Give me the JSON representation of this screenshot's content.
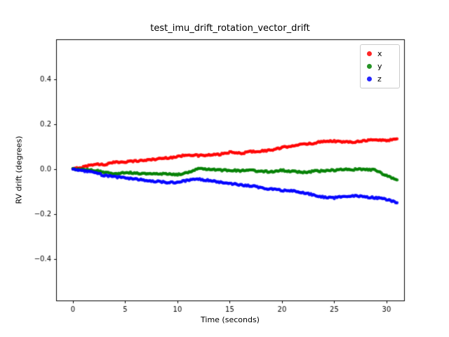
{
  "chart_data": {
    "type": "scatter",
    "title": "test_imu_drift_rotation_vector_drift",
    "xlabel": "Time (seconds)",
    "ylabel": "RV drift (degrees)",
    "xlim": [
      -1.61,
      31.68
    ],
    "ylim": [
      -0.585,
      0.578
    ],
    "xticks": [
      0,
      5,
      10,
      15,
      20,
      25,
      30
    ],
    "yticks": [
      -0.4,
      -0.2,
      0.0,
      0.2,
      0.4
    ],
    "grid": false,
    "legend_position": "upper right",
    "x": [
      0,
      1,
      2,
      3,
      4,
      5,
      6,
      7,
      8,
      9,
      10,
      11,
      12,
      13,
      14,
      15,
      16,
      17,
      18,
      19,
      20,
      21,
      22,
      23,
      24,
      25,
      26,
      27,
      28,
      29,
      30,
      31
    ],
    "series": [
      {
        "name": "x",
        "color": "#ff0000",
        "values": [
          0.0,
          0.01,
          0.022,
          0.02,
          0.03,
          0.033,
          0.036,
          0.04,
          0.045,
          0.05,
          0.055,
          0.065,
          0.06,
          0.062,
          0.065,
          0.075,
          0.07,
          0.078,
          0.08,
          0.085,
          0.095,
          0.105,
          0.11,
          0.115,
          0.125,
          0.125,
          0.12,
          0.122,
          0.128,
          0.13,
          0.128,
          0.135
        ]
      },
      {
        "name": "y",
        "color": "#008000",
        "values": [
          0.0,
          -0.003,
          -0.005,
          -0.015,
          -0.02,
          -0.015,
          -0.018,
          -0.02,
          -0.022,
          -0.02,
          -0.025,
          -0.015,
          0.005,
          0.0,
          -0.005,
          -0.005,
          -0.008,
          -0.005,
          -0.01,
          -0.012,
          -0.005,
          -0.01,
          -0.015,
          -0.01,
          -0.008,
          -0.005,
          0.0,
          -0.002,
          0.0,
          -0.005,
          -0.03,
          -0.048
        ]
      },
      {
        "name": "z",
        "color": "#0000ff",
        "values": [
          0.0,
          -0.008,
          -0.015,
          -0.028,
          -0.035,
          -0.038,
          -0.045,
          -0.05,
          -0.055,
          -0.06,
          -0.058,
          -0.05,
          -0.045,
          -0.05,
          -0.058,
          -0.065,
          -0.07,
          -0.075,
          -0.082,
          -0.09,
          -0.095,
          -0.098,
          -0.105,
          -0.115,
          -0.125,
          -0.128,
          -0.122,
          -0.118,
          -0.125,
          -0.128,
          -0.135,
          -0.15
        ]
      }
    ]
  }
}
